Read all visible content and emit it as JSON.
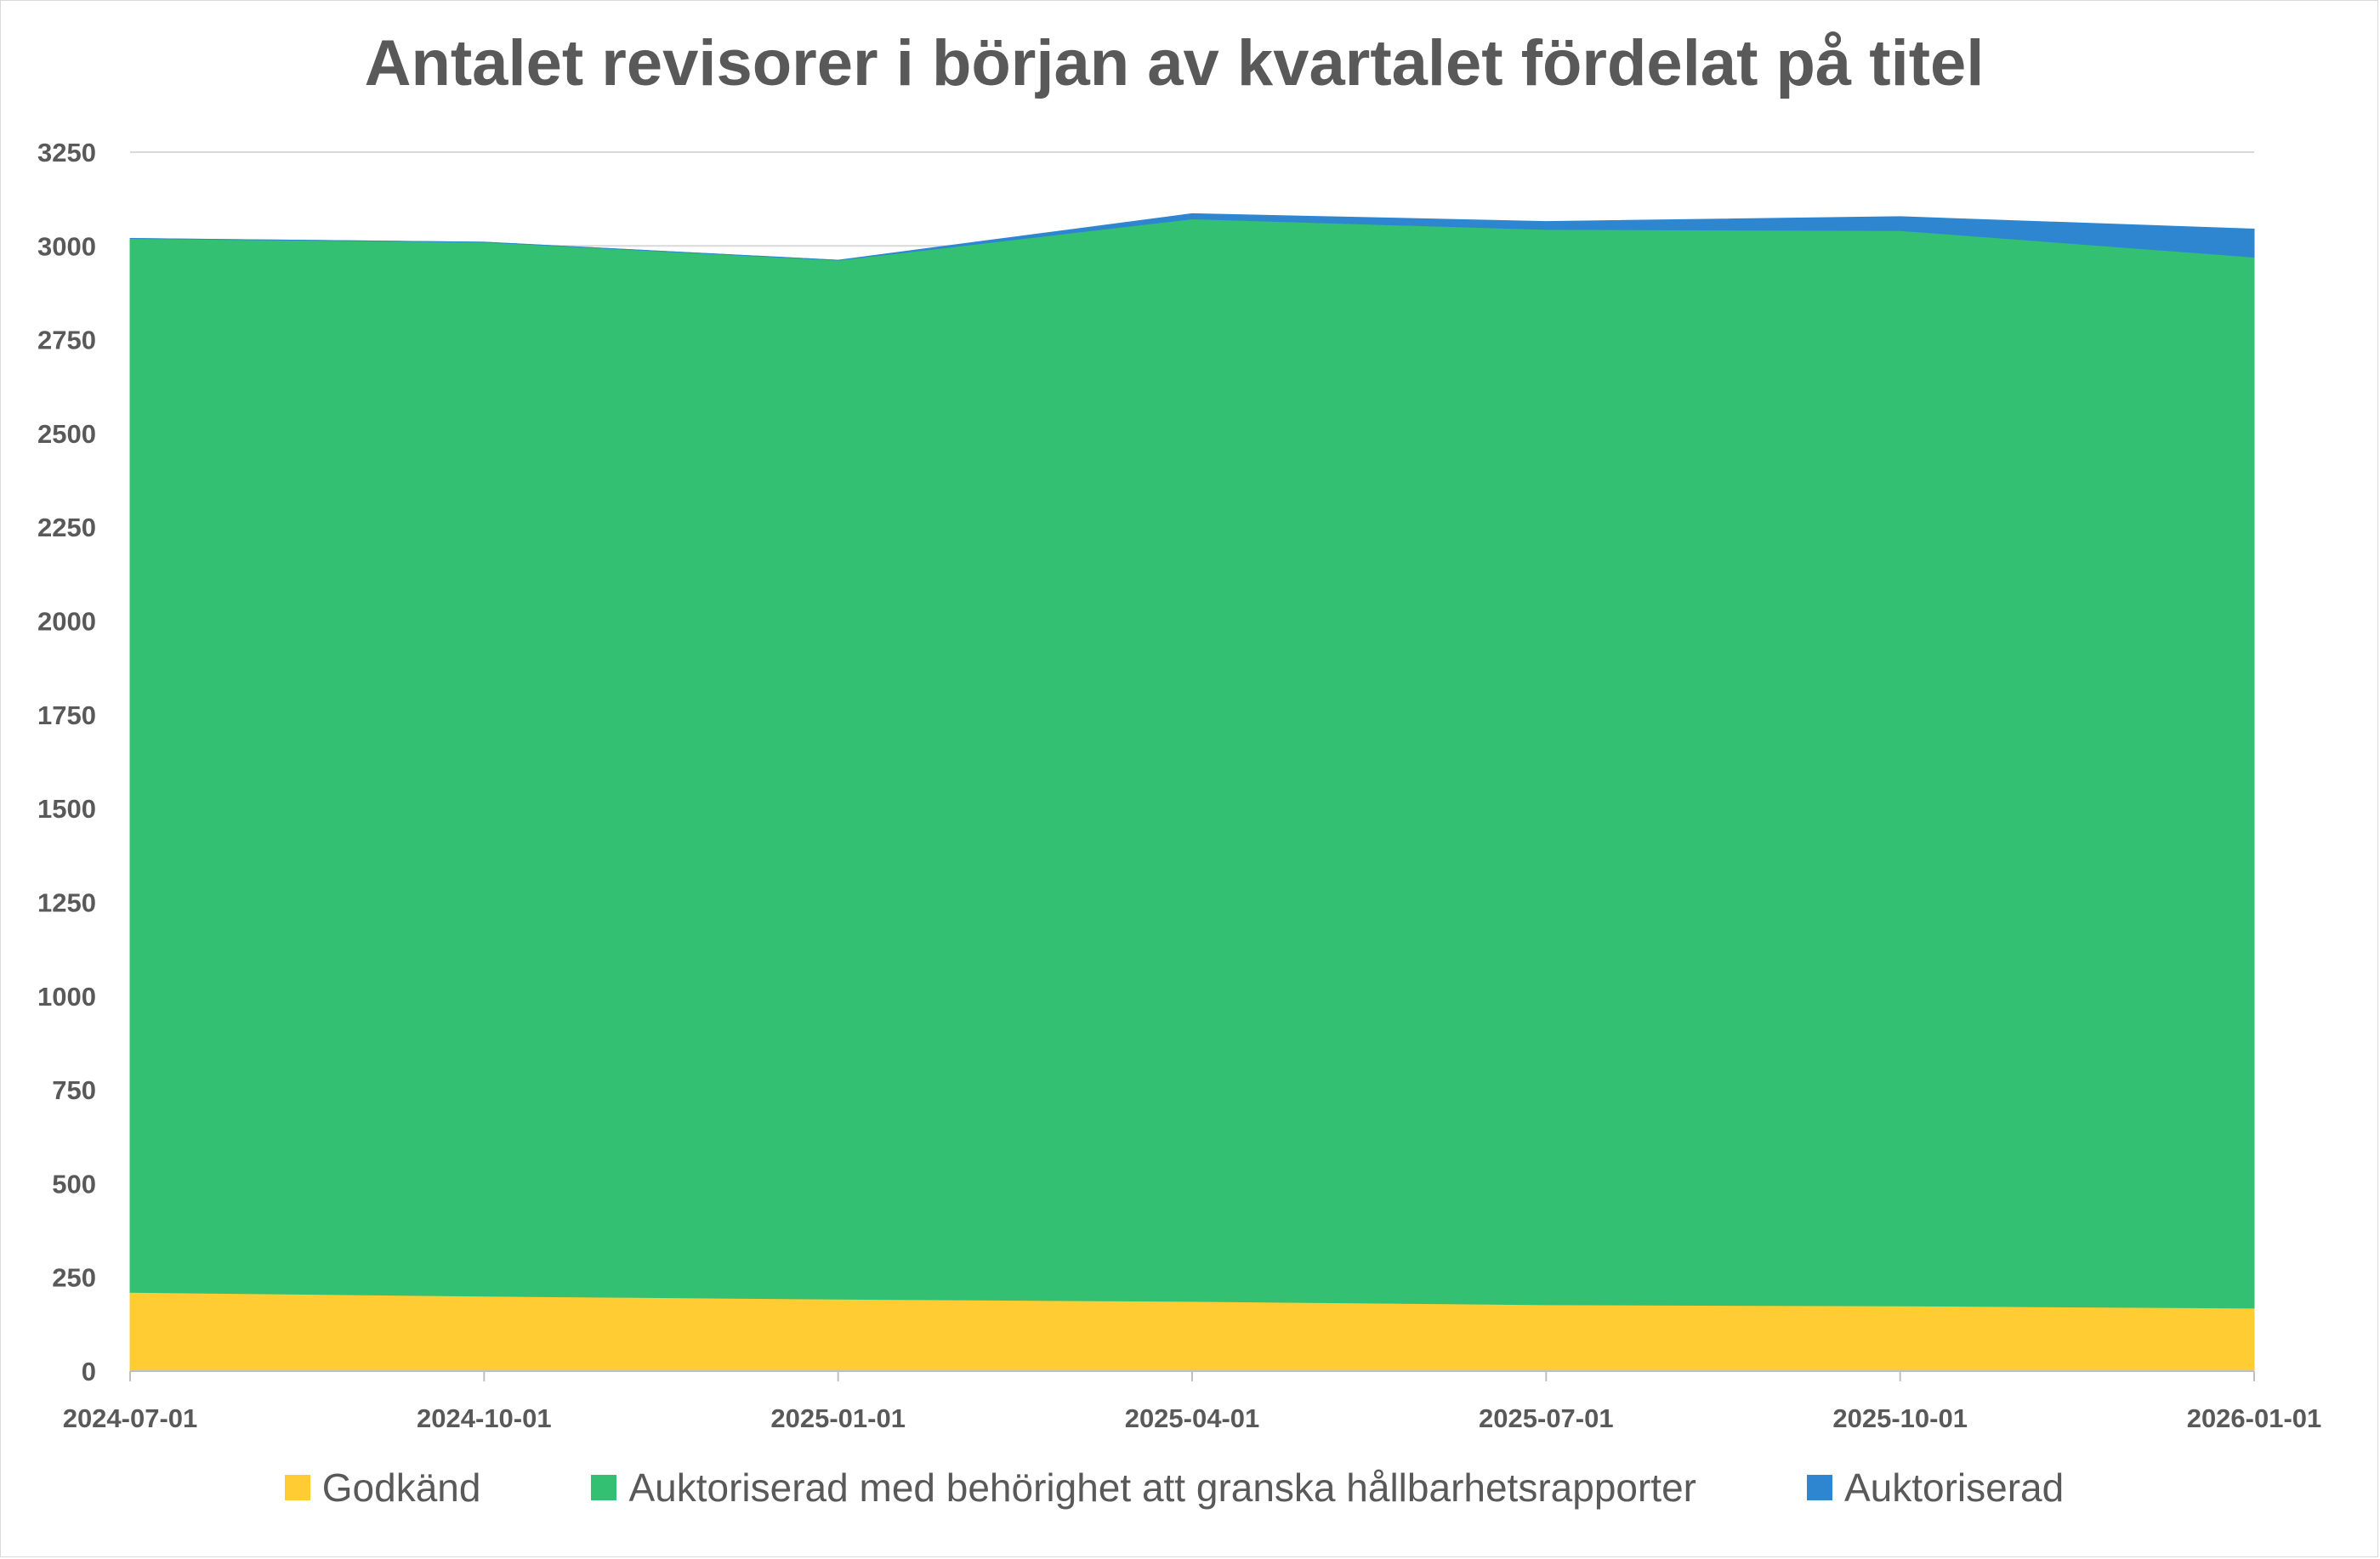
{
  "chart_data": {
    "type": "area",
    "stacked": true,
    "title": "Antalet revisorer i början av kvartalet fördelat på titel",
    "xlabel": "",
    "ylabel": "",
    "categories": [
      "2024-07-01",
      "2024-10-01",
      "2025-01-01",
      "2025-04-01",
      "2025-07-01",
      "2025-10-01",
      "2026-01-01"
    ],
    "ylim": [
      0,
      3250
    ],
    "yticks": [
      "0",
      "250",
      "500",
      "750",
      "1000",
      "1250",
      "1500",
      "1750",
      "2000",
      "2250",
      "2500",
      "2750",
      "3000",
      "3250"
    ],
    "grid": true,
    "legend": "bottom",
    "series": [
      {
        "name": "Godkänd",
        "color": "#ffcd33",
        "values": [
          210,
          200,
          192,
          186,
          177,
          174,
          168
        ]
      },
      {
        "name": "Auktoriserad med behörighet att granska hållbarhetsrapporter",
        "color": "#33c072",
        "values": [
          2810,
          2810,
          2770,
          2886,
          2867,
          2867,
          2802
        ]
      },
      {
        "name": "Auktoriserad",
        "color": "#2e86d1",
        "values": [
          0,
          0,
          0,
          14,
          21,
          37,
          75
        ]
      }
    ]
  }
}
